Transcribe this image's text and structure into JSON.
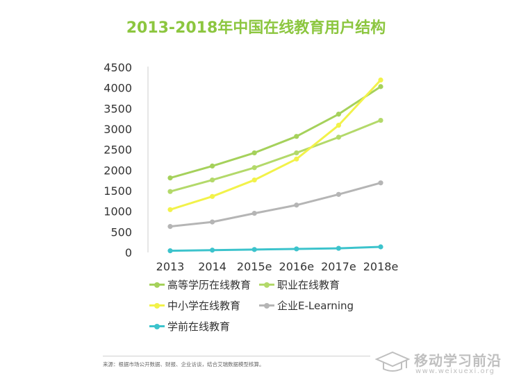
{
  "chart_data": {
    "type": "line",
    "title": "2013-2018年中国在线教育用户结构",
    "categories": [
      "2013",
      "2014",
      "2015e",
      "2016e",
      "2017e",
      "2018e"
    ],
    "y_ticks": [
      "0",
      "500",
      "1000",
      "1500",
      "2000",
      "2500",
      "3000",
      "3500",
      "4000",
      "4500"
    ],
    "ylim": [
      0,
      4500
    ],
    "series": [
      {
        "name": "高等学历在线教育",
        "color": "#a5d15b",
        "values": [
          1810,
          2100,
          2420,
          2820,
          3360,
          4030
        ]
      },
      {
        "name": "职业在线教育",
        "color": "#b3d96a",
        "values": [
          1480,
          1760,
          2060,
          2420,
          2800,
          3210
        ]
      },
      {
        "name": "中小学在线教育",
        "color": "#f2f24a",
        "values": [
          1040,
          1360,
          1760,
          2270,
          3090,
          4190
        ]
      },
      {
        "name": "企业E-Learning",
        "color": "#b5b5b5",
        "values": [
          630,
          740,
          950,
          1150,
          1410,
          1690
        ]
      },
      {
        "name": "学前在线教育",
        "color": "#3cc3cc",
        "values": [
          40,
          55,
          70,
          85,
          100,
          135
        ]
      }
    ],
    "legend": "bottom",
    "grid": false
  },
  "footer": {
    "source": "来源：根据市场公开数据、财报、企业访谈，结合艾瑞数据模型核算。"
  },
  "watermark": {
    "title": "移动学习前沿",
    "url": "www.weixuexi.org"
  }
}
